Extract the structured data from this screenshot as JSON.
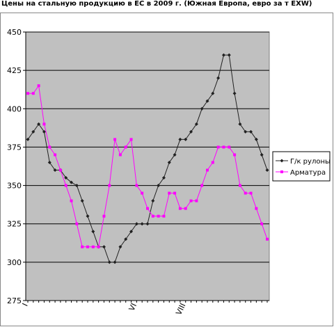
{
  "chart_data": {
    "type": "line",
    "title": "Цены на стальную продукцию в ЕС в 2009 г. (Южная Европа, евро за т EXW)",
    "categories": [
      "I",
      null,
      null,
      null,
      null,
      null,
      null,
      null,
      null,
      null,
      null,
      null,
      null,
      null,
      null,
      null,
      null,
      null,
      null,
      null,
      "VI",
      null,
      null,
      null,
      null,
      null,
      null,
      null,
      null,
      "VIII",
      null,
      null,
      null,
      null,
      null,
      null,
      null,
      null,
      null,
      null,
      null,
      null,
      null,
      null,
      null
    ],
    "series": [
      {
        "name": "Г/к рулоны",
        "color": "#202020",
        "values": [
          380,
          385,
          390,
          385,
          365,
          360,
          360,
          355,
          352,
          350,
          340,
          330,
          320,
          310,
          310,
          300,
          300,
          310,
          315,
          320,
          325,
          325,
          325,
          340,
          350,
          355,
          365,
          370,
          380,
          380,
          385,
          390,
          400,
          405,
          410,
          420,
          435,
          435,
          410,
          390,
          385,
          385,
          380,
          370,
          360
        ]
      },
      {
        "name": "Арматура",
        "color": "#ff00ff",
        "values": [
          410,
          410,
          415,
          390,
          375,
          370,
          360,
          350,
          340,
          325,
          310,
          310,
          310,
          310,
          330,
          350,
          380,
          370,
          375,
          380,
          350,
          345,
          335,
          330,
          330,
          330,
          345,
          345,
          335,
          335,
          340,
          340,
          350,
          360,
          365,
          375,
          375,
          375,
          370,
          350,
          345,
          345,
          335,
          325,
          315
        ]
      }
    ],
    "ylim": [
      275,
      450
    ],
    "yticks": [
      275,
      300,
      325,
      350,
      375,
      400,
      425,
      450
    ],
    "grid": true,
    "legend": "right"
  }
}
